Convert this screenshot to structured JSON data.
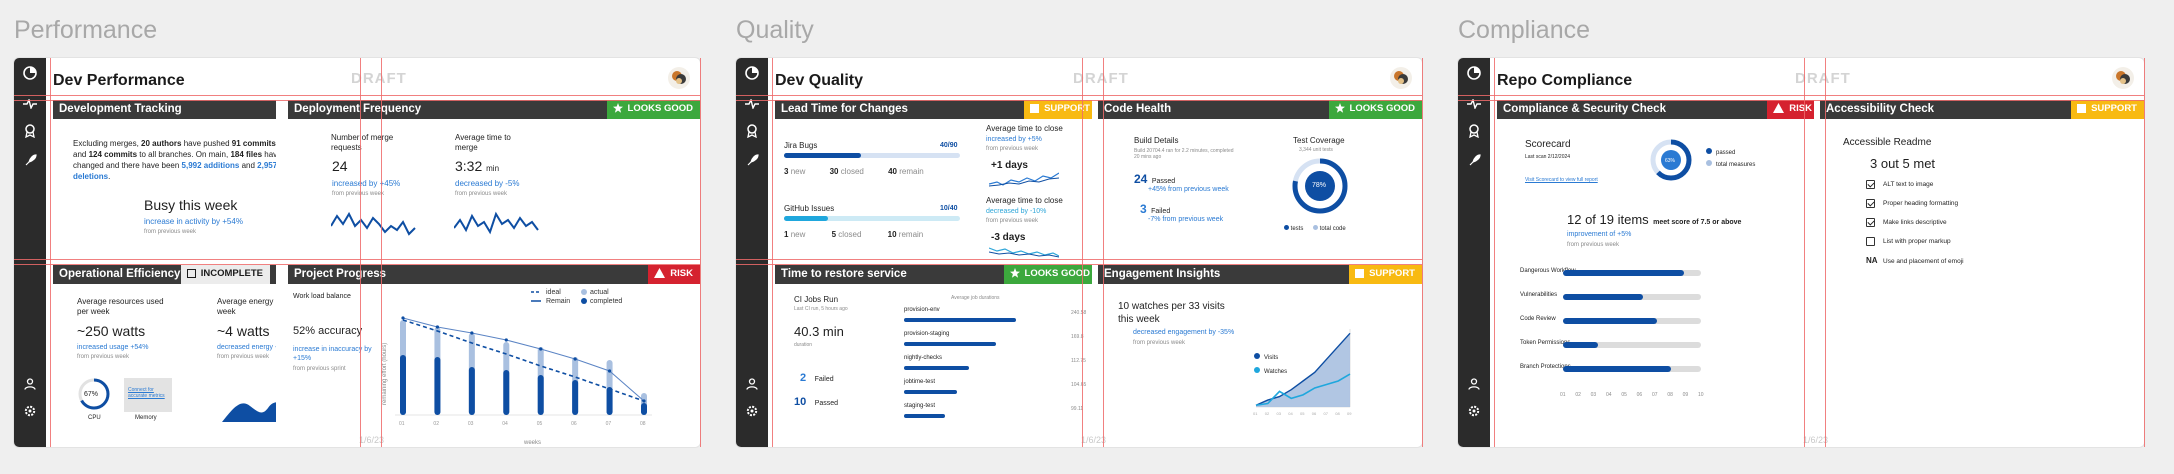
{
  "boards": {
    "performance": {
      "label": "Performance",
      "page_title": "Dev Performance",
      "draft": "DRAFT",
      "page_number": "1/6/23",
      "dev_tracking": {
        "title": "Development Tracking",
        "summary_1": "Excluding merges, ",
        "summary_2": "20 authors",
        "summary_3": " have pushed ",
        "summary_4": "91 commits",
        "summary_5": " to main and ",
        "summary_6": "124 commits",
        "summary_7": " to all branches. On main, ",
        "summary_8": "184 files",
        "summary_9": " have changed and there have been ",
        "summary_10": "5,992 additions",
        "summary_11": " and ",
        "summary_12": "2,957 deletions",
        "summary_13": ".",
        "headline": "Busy this week",
        "trend": "increase in activity by +54%",
        "note": "from previous week"
      },
      "deployment": {
        "title": "Deployment Frequency",
        "badge": "LOOKS GOOD",
        "m1_label": "Number of merge requests",
        "m1_value": "24",
        "m1_trend": "increased by +45%",
        "m1_note": "from previous week",
        "m2_label": "Average time to merge",
        "m2_value": "3:32",
        "m2_unit": "min",
        "m2_trend": "decreased by -5%",
        "m2_note": "from previous week"
      },
      "operational": {
        "title": "Operational Efficiency",
        "badge": "INCOMPLETE",
        "r_label": "Average resources used per week",
        "r_value": "~250 watts",
        "r_trend": "increased usage",
        "r_trend_val": "+54%",
        "r_note": "from previous week",
        "e_label": "Average energy used per week",
        "e_value": "~4 watts",
        "e_trend": "decreased energy -5%",
        "e_note": "from previous week",
        "cpu_value": "67%",
        "cpu_label": "CPU",
        "mem_label": "Memory",
        "mem_link": "Connect for accurate metrics"
      },
      "progress": {
        "title": "Project Progress",
        "badge": "RISK",
        "wl_label": "Work load balance",
        "acc_value": "52% accuracy",
        "acc_trend": "increase in inaccuracy by +15%",
        "acc_note": "from previous sprint",
        "legend_ideal": "ideal",
        "legend_remain": "Remain",
        "legend_actual": "actual",
        "legend_completed": "completed",
        "ylabel": "remaining effort (hours)",
        "xlabel": "weeks"
      }
    },
    "quality": {
      "label": "Quality",
      "page_title": "Dev Quality",
      "draft": "DRAFT",
      "page_number": "1/6/23",
      "lead_time": {
        "title": "Lead Time for Changes",
        "badge": "SUPPORT",
        "jira_label": "Jira Bugs",
        "jira_ratio": "40/90",
        "jira_progress": 0.44,
        "jira_new": "3",
        "jira_closed": "30",
        "jira_remain": "40",
        "gh_label": "GitHub Issues",
        "gh_ratio": "10/40",
        "gh_progress": 0.25,
        "gh_new": "1",
        "gh_closed": "5",
        "gh_remain": "10",
        "new_label": "new",
        "closed_label": "closed",
        "remain_label": "remain",
        "a1_label": "Average time to close",
        "a1_trend": "increased by +5%",
        "a1_note": "from previous week",
        "a1_value": "+1 days",
        "a2_label": "Average time to close",
        "a2_trend": "decreased by -10%",
        "a2_note": "from previous week",
        "a2_value": "-3 days"
      },
      "code_health": {
        "title": "Code Health",
        "badge": "LOOKS GOOD",
        "build_title": "Build Details",
        "build_sub": "Build 20704.4 ran for 2.2 minutes, completed 20 mins ago",
        "passed_value": "24",
        "passed_label": "Passed",
        "passed_trend": "+45% from previous week",
        "failed_value": "3",
        "failed_label": "Failed",
        "failed_trend": "-7% from previous week",
        "cov_title": "Test Coverage",
        "cov_sub": "3,344 unit tests",
        "cov_value": "78%",
        "legend_tests": "tests",
        "legend_total": "total code"
      },
      "restore": {
        "title": "Time to restore service",
        "badge": "LOOKS GOOD",
        "ci_title": "CI Jobs Run",
        "ci_sub": "Last CI run, 5 hours ago",
        "duration_value": "40.3 min",
        "duration_label": "duration",
        "failed_value": "2",
        "failed_label": "Failed",
        "passed_value": "10",
        "passed_label": "Passed",
        "jobs_title": "Average job durations",
        "jobs": [
          {
            "name": "provision-env",
            "time": "240.58",
            "frac": 0.95
          },
          {
            "name": "provision-staging",
            "time": "169.8",
            "frac": 0.78
          },
          {
            "name": "nightly-checks",
            "time": "112.75",
            "frac": 0.55
          },
          {
            "name": "jobtime-test",
            "time": "104.65",
            "frac": 0.45
          },
          {
            "name": "staging-test",
            "time": "99.11",
            "frac": 0.35
          }
        ]
      },
      "engagement": {
        "title": "Engagement Insights",
        "badge": "SUPPORT",
        "headline": "10 watches per 33 visits this week",
        "trend": "decreased engagement by -35%",
        "note": "from previous week",
        "legend_visits": "Visits",
        "legend_watches": "Watches"
      }
    },
    "compliance": {
      "label": "Compliance",
      "page_title": "Repo Compliance",
      "draft": "DRAFT",
      "page_number": "1/6/23",
      "security": {
        "title": "Compliance & Security Check",
        "badge": "RISK",
        "scorecard_title": "Scorecard",
        "scorecard_sub": "Last scan 2/12/2024",
        "scorecard_link": "Visit Scorecard to view full report",
        "ring_value": "63%",
        "legend_passed": "passed",
        "legend_total": "total measures",
        "items_value": "12 of 19 items",
        "items_suffix": "meet score of 7.5 or above",
        "improve": "improvement of +5%",
        "note": "from previous week",
        "bars": [
          {
            "name": "Dangerous Workflow",
            "value": 8.8
          },
          {
            "name": "Vulnerabilities",
            "value": 5.8
          },
          {
            "name": "Code Review",
            "value": 6.8
          },
          {
            "name": "Token Permissions",
            "value": 2.5
          },
          {
            "name": "Branch Protections",
            "value": 7.8
          }
        ],
        "ticks": [
          "01",
          "02",
          "03",
          "04",
          "05",
          "06",
          "07",
          "08",
          "09",
          "10"
        ]
      },
      "accessibility": {
        "title": "Accessibility Check",
        "badge": "SUPPORT",
        "readme_title": "Accessible Readme",
        "met": "3 out 5 met",
        "items": [
          {
            "mark": "check",
            "label": "ALT text to image"
          },
          {
            "mark": "check",
            "label": "Proper heading formatting"
          },
          {
            "mark": "check",
            "label": "Make links descriptive"
          },
          {
            "mark": "empty",
            "label": "List with proper markup"
          },
          {
            "mark": "NA",
            "label": "Use and placement of emoji"
          }
        ]
      }
    }
  },
  "colors": {
    "navy": "#0e4ea3",
    "blue": "#2a7ad3",
    "looks_good": "#3ca83d",
    "support": "#f8ba12",
    "risk": "#d5222f",
    "header": "#3a3a3a",
    "rail": "#2b2b2b",
    "guides": "#ef6a6a"
  },
  "icons": {
    "rail": [
      "pie-chart-icon",
      "pulse-icon",
      "award-icon",
      "rocket-icon",
      "person-icon",
      "settings-icon"
    ],
    "badges": {
      "good": "star-icon",
      "support": "square-icon",
      "risk": "warning-icon",
      "incomplete": "square-outline-icon"
    }
  },
  "chart_data": [
    {
      "type": "bar",
      "title": "Work load balance",
      "xlabel": "weeks",
      "ylabel": "remaining effort (hours)",
      "categories": [
        "01",
        "02",
        "03",
        "04",
        "05",
        "06",
        "07",
        "08"
      ],
      "series": [
        {
          "name": "actual",
          "values": [
            95,
            88,
            82,
            73,
            68,
            58,
            55,
            22
          ]
        },
        {
          "name": "completed",
          "values": [
            60,
            58,
            48,
            45,
            40,
            35,
            28,
            12
          ]
        },
        {
          "name": "ideal",
          "values": [
            95,
            84,
            72,
            61,
            49,
            38,
            26,
            14
          ]
        },
        {
          "name": "Remain",
          "values": [
            97,
            88,
            82,
            75,
            66,
            56,
            44,
            14
          ]
        }
      ],
      "ylim": [
        0,
        100
      ]
    },
    {
      "type": "area",
      "title": "",
      "categories": [
        "01",
        "02",
        "03",
        "04",
        "05",
        "06",
        "07",
        "08",
        "09"
      ],
      "series": [
        {
          "name": "Visits",
          "values": [
            2,
            8,
            12,
            20,
            30,
            40,
            55,
            70,
            85
          ]
        },
        {
          "name": "Watches",
          "values": [
            2,
            4,
            18,
            10,
            14,
            22,
            26,
            30,
            38
          ]
        }
      ]
    },
    {
      "type": "bar",
      "title": "",
      "categories": [
        "Dangerous Workflow",
        "Vulnerabilities",
        "Code Review",
        "Token Permissions",
        "Branch Protections"
      ],
      "values": [
        8.8,
        5.8,
        6.8,
        2.5,
        7.8
      ],
      "ylim": [
        0,
        10
      ]
    },
    {
      "type": "line",
      "title": "",
      "series": [
        {
          "name": "",
          "values": [
            0.4,
            0.7,
            0.5,
            0.8,
            0.3,
            0.6,
            0.45,
            0.75,
            0.2,
            0.5,
            0.35
          ]
        },
        {
          "name": "",
          "values": [
            0.5,
            0.3,
            0.7,
            0.4,
            0.8,
            0.45,
            0.65,
            0.3,
            0.6,
            0.4,
            0.55
          ]
        }
      ]
    }
  ]
}
